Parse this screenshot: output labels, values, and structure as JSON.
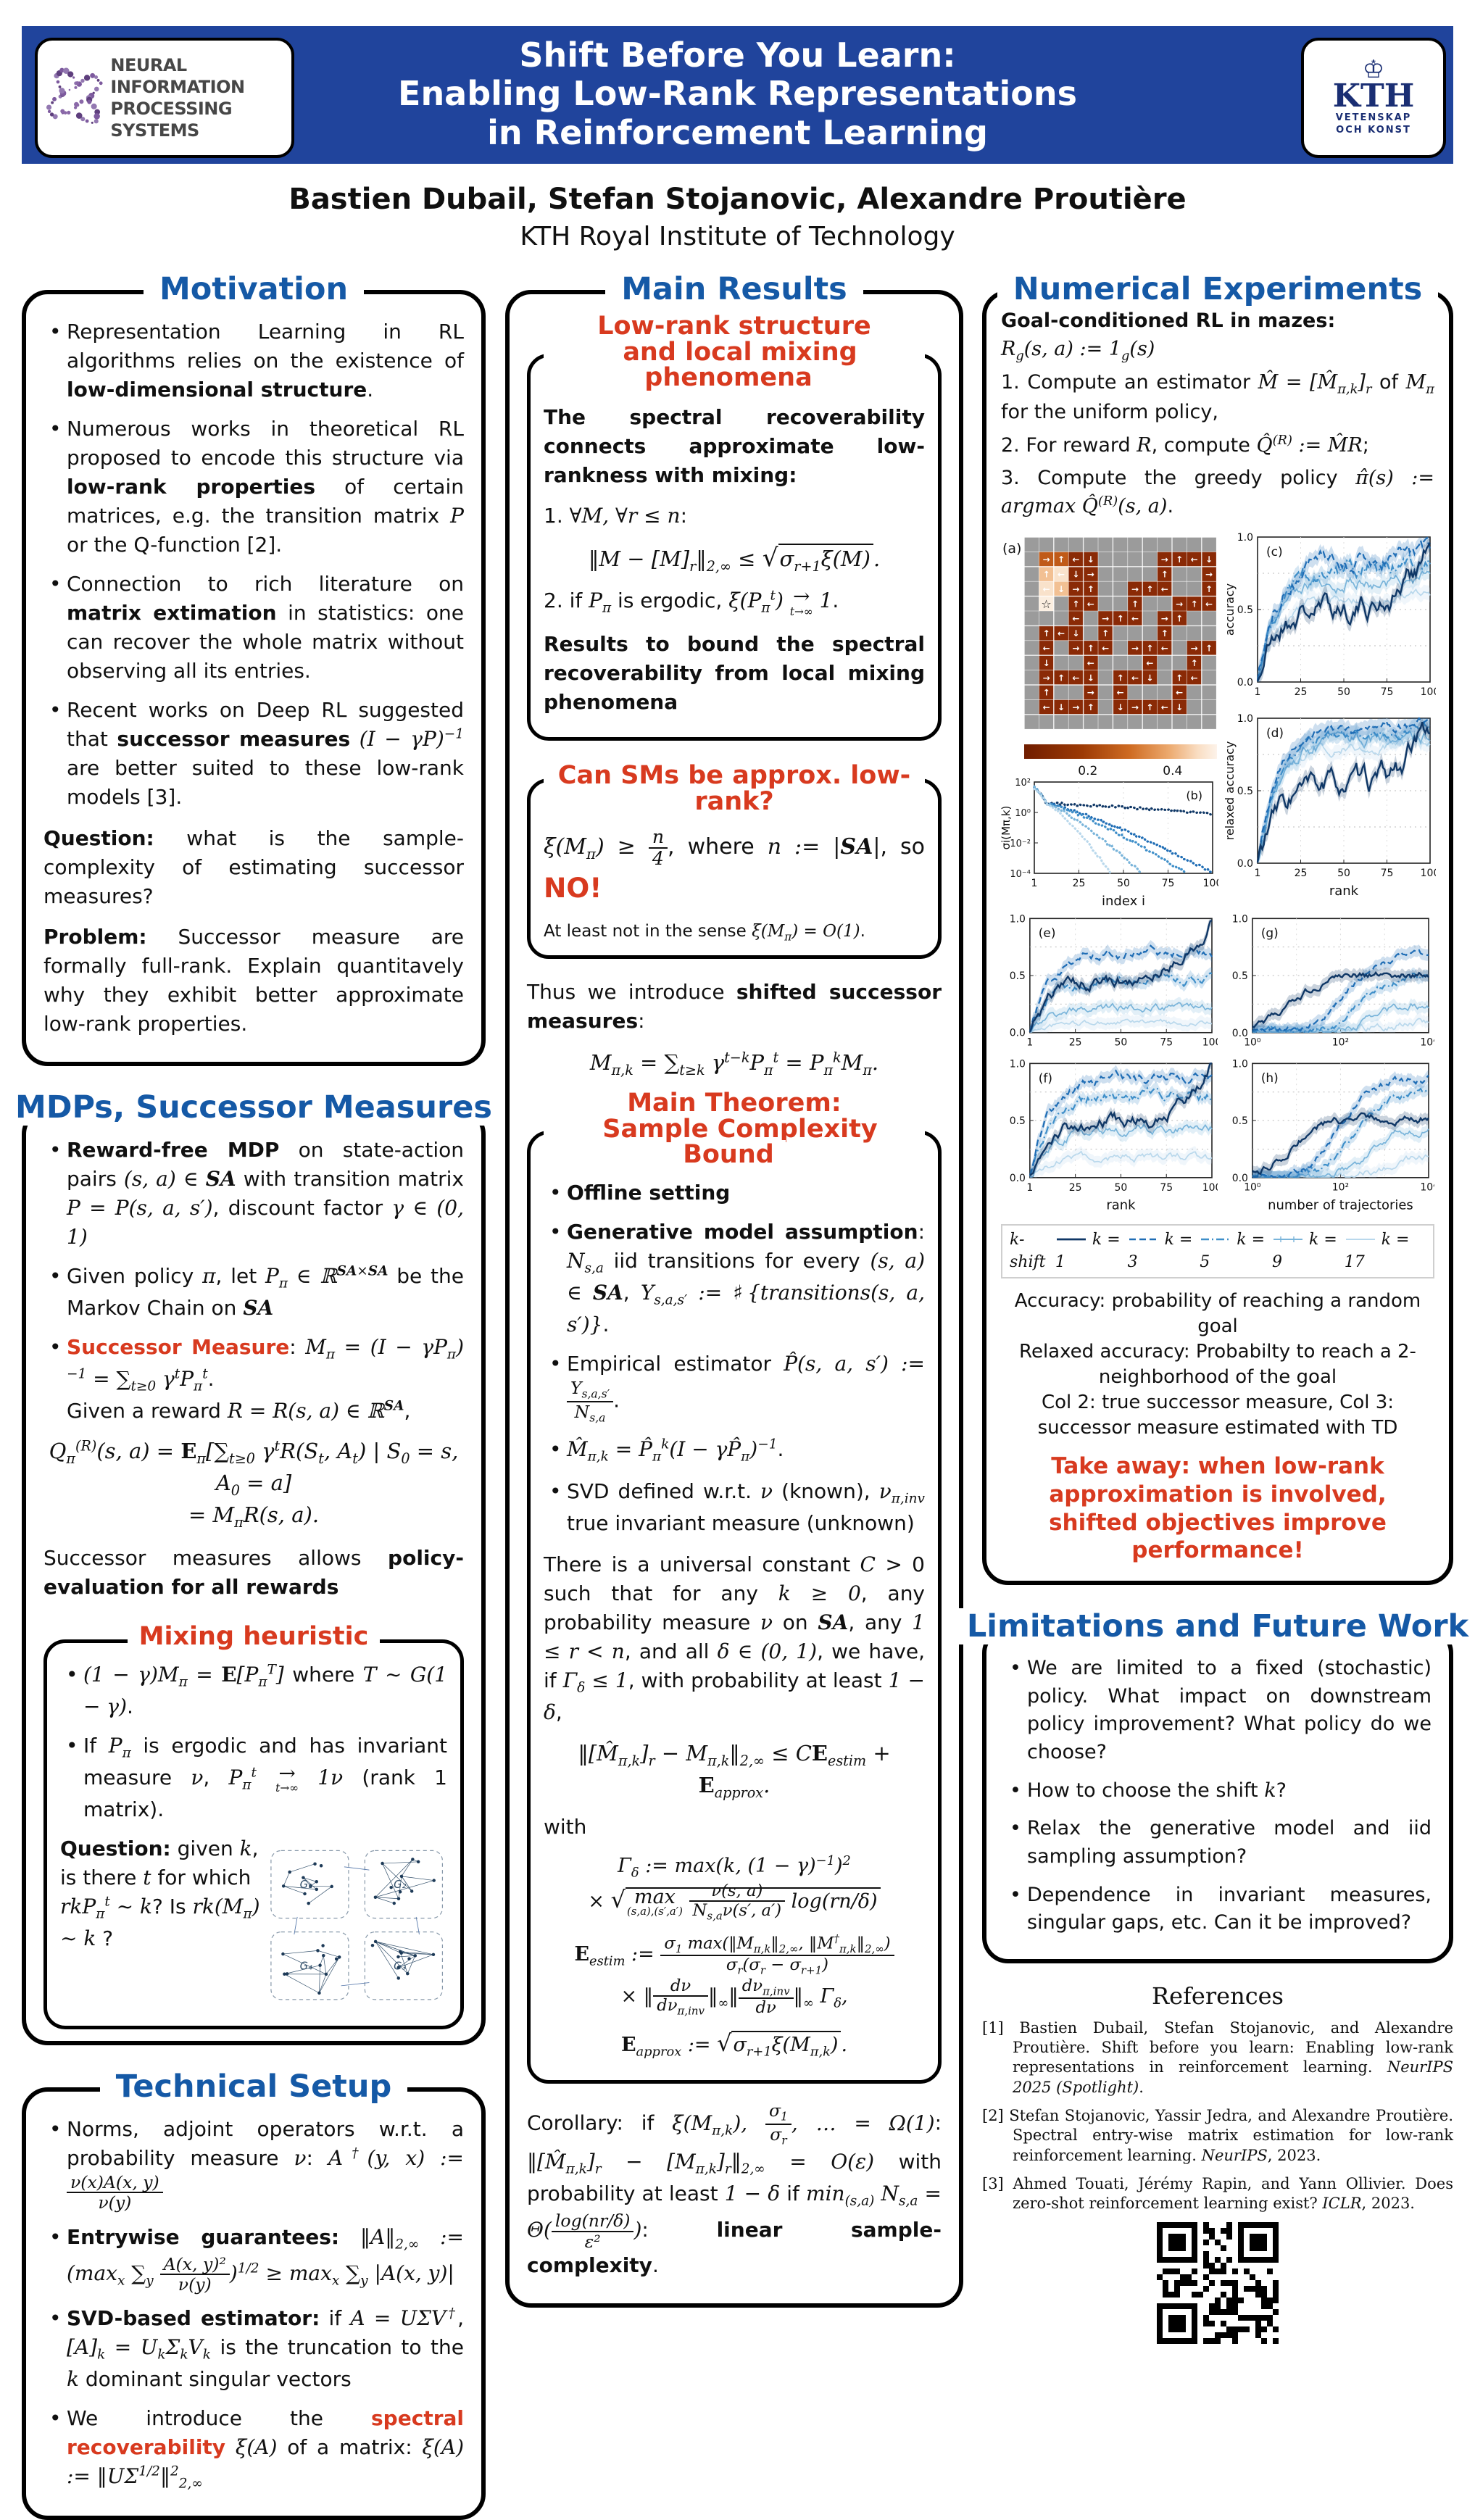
{
  "colors": {
    "banner_blue": "#20449c",
    "section_blue": "#1559a6",
    "accent_red": "#d83a1f",
    "maze_dark_red": "#8a2a06",
    "series_blues": [
      "#0f3766",
      "#1f6db5",
      "#3f8fc9",
      "#79b4da",
      "#b9d8ec"
    ]
  },
  "header": {
    "title_lines": [
      "Shift Before You Learn:",
      "Enabling Low-Rank Representations",
      "in Reinforcement Learning"
    ],
    "neurips_line1": "NEURAL INFORMATION",
    "neurips_line2": "PROCESSING SYSTEMS",
    "kth_name": "KTH",
    "kth_crown": "♔",
    "kth_sub1": "VETENSKAP",
    "kth_sub2": "OCH KONST",
    "authors": "Bastien Dubail, Stefan Stojanovic, Alexandre Proutière",
    "affiliation": "KTH Royal Institute of Technology"
  },
  "motivation": {
    "title": "Motivation",
    "bullets": [
      "Representation Learning in RL algorithms relies on the existence of <b>low-dimensional structure</b>.",
      "Numerous works in theoretical RL proposed to encode this structure via <b>low-rank properties</b> of certain matrices, e.g. the transition matrix <span class='m'>P</span> or the Q-function [2].",
      "Connection to rich literature on <b>matrix extimation</b> in statistics: one can recover the whole matrix without observing all its entries.",
      "Recent works on Deep RL suggested that <b>successor measures</b> <span class='m'>(I − γP)<sup>−1</sup></span> are better suited to these low-rank models [3]."
    ],
    "question": "<b>Question:</b> what is the sample-complexity of estimating successor measures?",
    "problem": "<b>Problem:</b> Successor measure are formally full-rank. Explain quantitavely why they exhibit better approximate low-rank properties."
  },
  "mdps": {
    "title": "MDPs, Successor Measures",
    "bullets": [
      "<b>Reward-free MDP</b> on state-action pairs <span class='m'>(s, a) ∈ <span class='cal'>SA</span></span> with transition matrix <span class='m'>P = P(s, a, s′)</span>, discount factor <span class='m'>γ ∈ (0, 1)</span>",
      "Given policy <span class='m'>π</span>, let <span class='m'>P<sub>π</sub> ∈ ℝ<sup><span class='cal'>SA</span>×<span class='cal'>SA</span></sup></span> be the Markov Chain on <span class='m cal'>SA</span>",
      "<span class='rd'><b>Successor Measure</b></span>: <span class='m'>M<sub>π</sub> = (I − γP<sub>π</sub>)<sup>−1</sup> = ∑<sub>t≥0</sub> γ<sup>t</sup>P<sub>π</sub><sup>t</sup></span>.<br>Given a reward <span class='m'>R = R(s, a) ∈ ℝ<sup><span class='cal'>SA</span></sup></span>,"
    ],
    "q_equation": "<span class='m'>Q<sub>π</sub><sup>(R)</sup>(s, a) = <b>E</b><sub>π</sub>&#91;∑<sub>t≥0</sub> γ<sup>t</sup>R(S<sub>t</sub>, A<sub>t</sub>) | S<sub>0</sub> = s, A<sub>0</sub> = a&#93;<br>= M<sub>π</sub>R(s, a).</span>",
    "policy_eval": "Successor measures allows <b>policy-evaluation for all rewards</b>",
    "mixing": {
      "title": "Mixing heuristic",
      "bullets": [
        "<span class='m'>(1 − γ)M<sub>π</sub> = <b>E</b>&#91;P<sub>π</sub><sup>T</sup>&#93;</span> where <span class='m'>T ∼ G(1 − γ)</span>.",
        "If <span class='m'>P<sub>π</sub></span> is ergodic and has invariant measure <span class='m'>ν</span>, <span class='m'>P<sub>π</sub><sup>t</sup> <span class='lim'><span>→</span><span class='lb'>t→∞</span></span> 1ν</span> (rank 1 matrix)."
      ],
      "question": "<b>Question:</b> given <span class='m'>k</span>, is there <span class='m'>t</span> for which <span class='m'>rkP<sub>π</sub><sup>t</sup> ∼ k</span>? Is <span class='m'>rk(M<sub>π</sub>) ∼ k</span> ?",
      "graph_labels": [
        "G₁",
        "G₂",
        "G₄",
        "G₃"
      ]
    }
  },
  "technical": {
    "title": "Technical Setup",
    "bullets": [
      "Norms, adjoint operators w.r.t. a probability measure <span class='m'>ν</span>: <span class='m'>A<sup>†</sup>(y, x) := <span class='fr'><span class='t'>ν(x)A(x, y)</span><span class='b'>ν(y)</span></span></span>",
      "<b>Entrywise guarantees:</b> <span class='m'>‖A‖<sub>2,∞</sub> := (max<sub>x</sub> ∑<sub>y</sub> <span class='fr'><span class='t'>A(x, y)²</span><span class='b'>ν(y)</span></span>)<sup>1/2</sup> ≥ max<sub>x</sub> ∑<sub>y</sub> |A(x, y)|</span>",
      "<b>SVD-based estimator:</b> if <span class='m'>A = UΣV<sup>†</sup></span>, <span class='m'>&#91;A&#93;<sub>k</sub> = U<sub>k</sub>Σ<sub>k</sub>V<sub>k</sub></span> is the truncation to the <span class='m'>k</span> dominant singular vectors",
      "We introduce the <span class='rd'><b>spectral recoverability</b></span> <span class='m'>ξ(A)</span> of a matrix: <span class='m'>ξ(A) := ‖UΣ<sup>1/2</sup>‖<sup>2</sup><sub>2,∞</sub></span>"
    ]
  },
  "main_results": {
    "title": "Main Results",
    "box1": {
      "title_lines": [
        "Low-rank structure",
        "and local mixing phenomena"
      ],
      "intro": "<b>The spectral recoverability connects approximate low-rankness with mixing:</b>",
      "item1": "1. <span class='m'>∀M, ∀r ≤ n</span>:",
      "eq1": "<span class='m'>‖M − &#91;M&#93;<sub>r</sub>‖<sub>2,∞</sub> ≤ <span class='rt'>√</span><span class='sq'>σ<sub>r+1</sub>ξ(M)</span>.</span>",
      "item2": "2. if <span class='m'>P<sub>π</sub></span> is ergodic, <span class='m'>ξ(P<sub>π</sub><sup>t</sup>) <span class='lim'><span>→</span><span class='lb'>t→∞</span></span> 1</span>.",
      "outro": "<b>Results to bound the spectral recoverability from local mixing phenomena</b>"
    },
    "box2": {
      "title": "Can SMs be approx. low-rank?",
      "main": "<span class='m'>ξ(M<sub>π</sub>) ≥ <span class='fr'><span class='t'>n</span><span class='b'>4</span></span></span>, where <span class='m'>n := |<span class='cal'>SA</span>|</span>, so <span class='no'>NO!</span>",
      "note": "At least not in the sense <span class='m'>ξ(M<sub>π</sub>) = O(1)</span>."
    },
    "shifted_intro": "Thus we introduce <b>shifted successor measures</b>:",
    "shifted_eq": "<span class='m'>M<sub>π,k</sub> = ∑<sub>t≥k</sub> γ<sup>t−k</sup>P<sub>π</sub><sup>t</sup> = P<sub>π</sub><sup>k</sup>M<sub>π</sub>.</span>",
    "theorem": {
      "title_lines": [
        "Main Theorem:",
        "Sample Complexity Bound"
      ],
      "bullets": [
        "<b>Offline setting</b>",
        "<b>Generative model assumption</b>: <span class='m'>N<sub>s,a</sub></span> iid transitions for every <span class='m'>(s, a) ∈ <span class='cal'>SA</span></span>, <span class='m'>Y<sub>s,a,s′</sub> := ♯{transitions(s, a, s′)}</span>.",
        "Empirical estimator <span class='m'>P&#770;(s, a, s′) := <span class='fr'><span class='t'>Y<sub>s,a,s′</sub></span><span class='b'>N<sub>s,a</sub></span></span></span>.",
        "<span class='m'>M&#770;<sub>π,k</sub> = P&#770;<sub>π</sub><sup>k</sup>(I − γP&#770;<sub>π</sub>)<sup>−1</sup></span>.",
        "SVD defined w.r.t. <span class='m'>ν</span> (known), <span class='m'>ν<sub>π,inv</sub></span> true invariant measure (unknown)"
      ],
      "statement": "There is a universal constant <span class='m'>C</span> &gt; 0 such that for any <span class='m'>k ≥ 0</span>, any probability measure <span class='m'>ν</span> on <span class='m cal'>SA</span>, any <span class='m'>1 ≤ r &lt; n</span>, and all <span class='m'>δ ∈ (0, 1)</span>, we have, if <span class='m'>Γ<sub>δ</sub> ≤ 1</span>, with probability at least <span class='m'>1 − δ</span>,",
      "main_eq": "<span class='m'>‖&#91;M&#770;<sub>π,k</sub>&#93;<sub>r</sub> − M<sub>π,k</sub>‖<sub>2,∞</sub> ≤ C<b>E</b><sub>estim</sub> + <b>E</b><sub>approx</sub>.</span>",
      "with_label": "with",
      "gamma_eq": "<span class='m'>Γ<sub>δ</sub> := max(k, (1 − γ)<sup>−1</sup>)<sup>2</sup></span><br><span class='m'>× <span class='rt'>√</span><span class='sq'><span class='lim'><span>max</span><span class='lb'>(s,a),(s′,a′)</span></span>&nbsp;<span class='fr'><span class='t'>ν(s, a)</span><span class='b'>N<sub>s,a</sub>ν(s′, a′)</span></span> log(rn/δ)</span></span>",
      "estim_eq": "<span class='m'><b>E</b><sub>estim</sub> := <span class='fr'><span class='t'>σ<sub>1</sub> max(‖M<sub>π,k</sub>‖<sub>2,∞</sub>, ‖M<sup>†</sup><sub>π,k</sub>‖<sub>2,∞</sub>)</span><span class='b'>σ<sub>r</sub>(σ<sub>r</sub> − σ<sub>r+1</sub>)</span></span></span><br><span class='m'>× ‖<span class='fr'><span class='t'>dν</span><span class='b'>dν<sub>π,inv</sub></span></span>‖<sub>∞</sub>‖<span class='fr'><span class='t'>dν<sub>π,inv</sub></span><span class='b'>dν</span></span>‖<sub>∞</sub> Γ<sub>δ</sub>,</span>",
      "approx_eq": "<span class='m'><b>E</b><sub>approx</sub> := <span class='rt'>√</span><span class='sq'>σ<sub>r+1</sub>ξ(M<sub>π,k</sub>)</span>.</span>"
    },
    "corollary": "Corollary: if <span class='m'>ξ(M<sub>π,k</sub>), <span class='fr'><span class='t'>σ<sub>1</sub></span><span class='b'>σ<sub>r</sub></span></span>, …  =  Ω(1)</span>: <span class='m'>‖&#91;M&#770;<sub>π,k</sub>&#93;<sub>r</sub> − &#91;M<sub>π,k</sub>&#93;<sub>r</sub>‖<sub>2,∞</sub> = O(ε)</span> with probability at least <span class='m'>1 − δ</span> if <span class='m'>min<sub>(s,a)</sub> N<sub>s,a</sub> = Θ(<span class='fr'><span class='t'>log(nr/δ)</span><span class='b'>ε²</span></span>)</span>: <b>linear sample-complexity</b>."
  },
  "experiments": {
    "title": "Numerical Experiments",
    "goal_head": "<b>Goal-conditioned RL in mazes:</b>",
    "goal_eq": "<span class='m'>R<sub>g</sub>(s, a) := 1<sub>g</sub>(s)</span>",
    "steps": [
      "1. Compute an estimator <span class='m'>M&#770; = &#91;M&#770;<sub>π,k</sub>&#93;<sub>r</sub></span> of <span class='m'>M<sub>π</sub></span> for the uniform policy,",
      "2. For reward <span class='m'>R</span>, compute <span class='m'>Q&#770;<sup>(R)</sup> := M&#770;R</span>;",
      "3. Compute the greedy policy <span class='m'>π&#770;(s) := argmax Q&#770;<sup>(R)</sup>(s, a)</span>."
    ],
    "figure": {
      "maze": {
        "label": "(a)",
        "rows": [
          ".............",
          ".oo##....####",
          ".Ww##....#..#",
          ".wW##..###..#",
          ".s.##..#..###",
          "...#.###.##..",
          ".###.#...#...",
          ".#.###.###.##",
          ".#..#...#..#.",
          ".####.###.##.",
          ".#..#.#...#..",
          ".####.#####..",
          "............."
        ]
      },
      "colorbar_ticks": [
        "0.2",
        "0.4"
      ],
      "panel_b": {
        "label": "(b)",
        "ylabel": "σi(Mπ,k)",
        "xlabel": "index i",
        "yticks": [
          "10²",
          "10⁰",
          "10⁻²",
          "10⁻⁴"
        ],
        "xticks": [
          "1",
          "25",
          "50",
          "75",
          "100"
        ],
        "series": [
          {
            "end": -0.2,
            "endx": 1.02
          },
          {
            "end": -4.3,
            "endx": 1.0
          },
          {
            "end": -4.3,
            "endx": 0.85
          },
          {
            "end": -4.3,
            "endx": 0.6
          },
          {
            "end": -4.3,
            "endx": 0.43
          }
        ]
      },
      "panel_c": {
        "label": "(c)",
        "ylabel": "accuracy",
        "yticks": [
          "1.0",
          "0.5",
          "0.0"
        ],
        "xticks": [
          "1",
          "25",
          "50",
          "75",
          "100"
        ],
        "series": [
          {
            "plateau": 0.52,
            "final": 0.97,
            "noise": 0.07
          },
          {
            "plateau": 0.84,
            "final": 0.92,
            "noise": 0.05
          },
          {
            "plateau": 0.8,
            "final": 0.86,
            "noise": 0.05
          },
          {
            "plateau": 0.7,
            "final": 0.73,
            "noise": 0.04
          },
          {
            "plateau": 0.57,
            "final": 0.58,
            "noise": 0.03
          }
        ]
      },
      "panel_d": {
        "label": "(d)",
        "ylabel": "relaxed accuracy",
        "xlabel": "rank",
        "yticks": [
          "1.0",
          "0.5",
          "0.0"
        ],
        "xticks": [
          "1",
          "25",
          "50",
          "75",
          "100"
        ],
        "series": [
          {
            "plateau": 0.55,
            "final": 0.97,
            "noise": 0.07
          },
          {
            "plateau": 0.93,
            "final": 0.98,
            "noise": 0.03
          },
          {
            "plateau": 0.9,
            "final": 0.95,
            "noise": 0.03
          },
          {
            "plateau": 0.85,
            "final": 0.88,
            "noise": 0.04
          },
          {
            "plateau": 0.8,
            "final": 0.82,
            "noise": 0.03
          }
        ]
      },
      "panel_e": {
        "label": "(e)",
        "yticks": [
          "1.0",
          "0.5",
          "0.0"
        ],
        "xticks": [
          "1",
          "25",
          "50",
          "75",
          "100"
        ],
        "series": [
          {
            "plateau": 0.48,
            "final": 1.0,
            "noise": 0.05
          },
          {
            "plateau": 0.7,
            "final": 0.66,
            "noise": 0.04
          },
          {
            "plateau": 0.47,
            "final": 0.44,
            "noise": 0.04
          },
          {
            "plateau": 0.22,
            "final": 0.2,
            "noise": 0.03
          },
          {
            "plateau": 0.09,
            "final": 0.07,
            "noise": 0.02
          }
        ]
      },
      "panel_f": {
        "label": "(f)",
        "xlabel": "rank",
        "yticks": [
          "1.0",
          "0.5",
          "0.0"
        ],
        "xticks": [
          "1",
          "25",
          "50",
          "75",
          "100"
        ],
        "series": [
          {
            "plateau": 0.5,
            "final": 1.0,
            "noise": 0.05
          },
          {
            "plateau": 0.88,
            "final": 0.9,
            "noise": 0.04
          },
          {
            "plateau": 0.72,
            "final": 0.7,
            "noise": 0.04
          },
          {
            "plateau": 0.42,
            "final": 0.42,
            "noise": 0.04
          },
          {
            "plateau": 0.19,
            "final": 0.17,
            "noise": 0.03
          }
        ]
      },
      "panel_g": {
        "label": "(g)",
        "yticks": [
          "1.0",
          "0.5",
          "0.0"
        ],
        "xticks": [
          "10⁰",
          "10²",
          "10⁴"
        ],
        "series": [
          {
            "center": 0.22,
            "final": 0.5
          },
          {
            "center": 0.52,
            "final": 0.68
          },
          {
            "center": 0.6,
            "final": 0.5
          },
          {
            "center": 0.68,
            "final": 0.26
          },
          {
            "center": 0.74,
            "final": 0.1
          }
        ]
      },
      "panel_h": {
        "label": "(h)",
        "xlabel": "number of trajectories",
        "yticks": [
          "1.0",
          "0.5",
          "0.0"
        ],
        "xticks": [
          "10⁰",
          "10²",
          "10⁴"
        ],
        "series": [
          {
            "center": 0.22,
            "final": 0.52
          },
          {
            "center": 0.5,
            "final": 0.88
          },
          {
            "center": 0.58,
            "final": 0.75
          },
          {
            "center": 0.66,
            "final": 0.43
          },
          {
            "center": 0.76,
            "final": 0.2
          }
        ]
      },
      "legend": {
        "title": "k-shift",
        "entries": [
          {
            "label": "k = 1",
            "style": "solid"
          },
          {
            "label": "k = 3",
            "style": "dashed"
          },
          {
            "label": "k = 5",
            "style": "dashdot"
          },
          {
            "label": "k = 9",
            "style": "plus"
          },
          {
            "label": "k = 17",
            "style": "light"
          }
        ]
      }
    },
    "caption_lines": [
      "Accuracy: probability of reaching a random goal",
      "Relaxed accuracy: Probabilty to reach a 2-neighborhood of the goal",
      "Col 2: true successor measure, Col 3: successor measure estimated with TD"
    ],
    "takeaway": "Take away: when low-rank approximation is involved, shifted objectives improve performance!"
  },
  "limitations": {
    "title": "Limitations and Future Work",
    "bullets": [
      "We are limited to a fixed (stochastic) policy. What impact on downstream policy improvement? What policy do we choose?",
      "How to choose the shift <span class='m'>k</span>?",
      "Relax the generative model and iid sampling assumption?",
      "Dependence in invariant measures, singular gaps, etc. Can it be improved?"
    ]
  },
  "references": {
    "title": "References",
    "items": [
      "[1] Bastien Dubail, Stefan Stojanovic, and Alexandre Proutière. Shift before you learn: Enabling low-rank representations in reinforcement learning. <i>NeurIPS 2025 (Spotlight)</i>.",
      "[2] Stefan Stojanovic, Yassir Jedra, and Alexandre Proutière. Spectral entry-wise matrix estimation for low-rank reinforcement learning. <i>NeurIPS</i>, 2023.",
      "[3] Ahmed Touati, Jérémy Rapin, and Yann Ollivier. Does zero-shot reinforcement learning exist? <i>ICLR</i>, 2023."
    ]
  }
}
